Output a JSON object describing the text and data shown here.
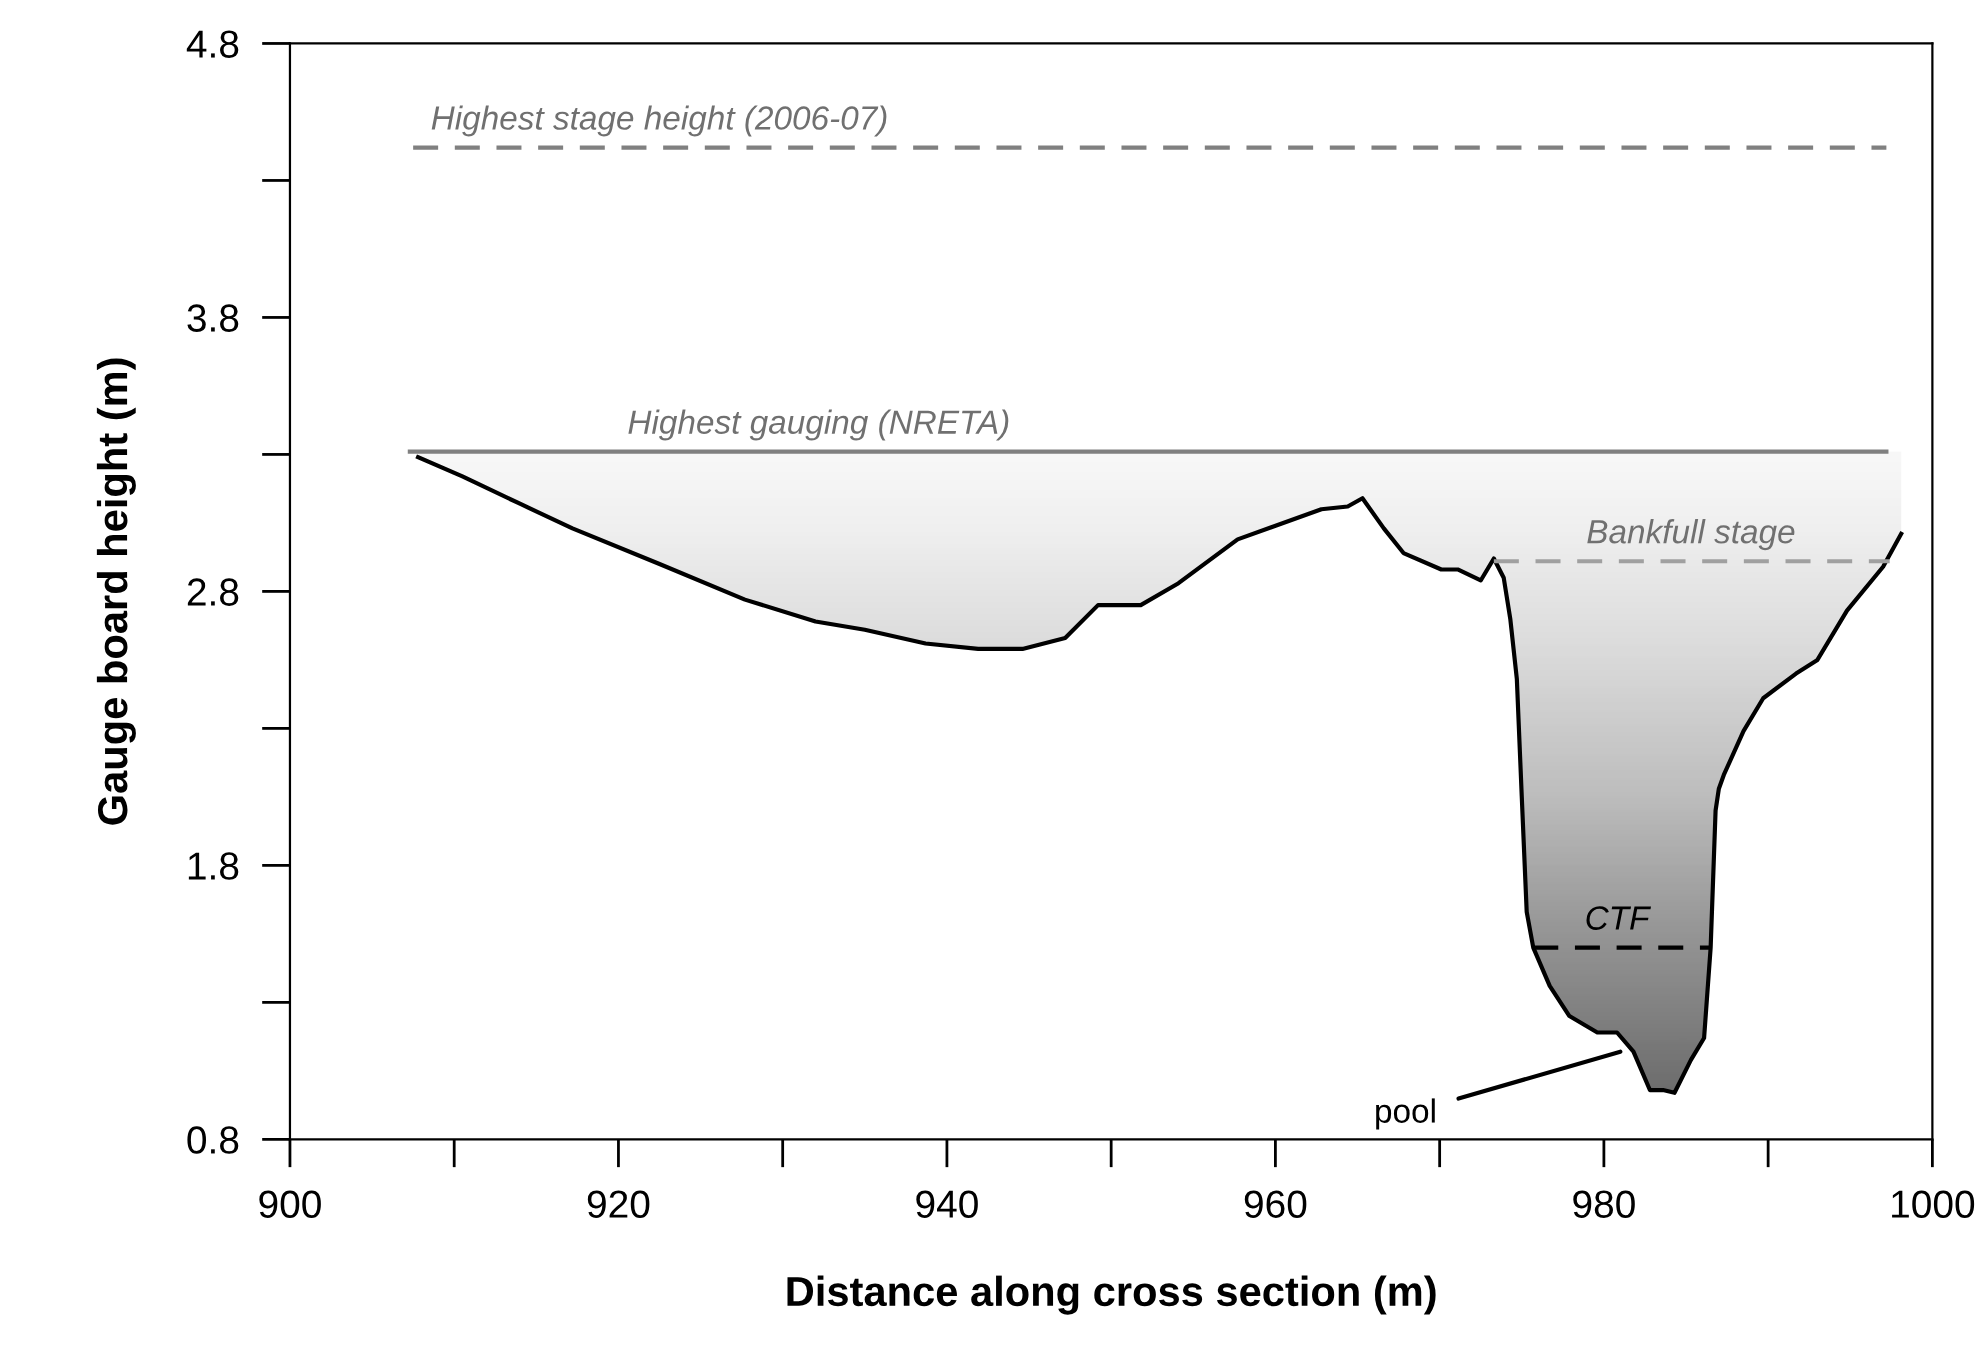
{
  "chart_data": {
    "type": "line",
    "xlabel": "Distance along cross section (m)",
    "ylabel": "Gauge board height (m)",
    "xlim": [
      900,
      1000
    ],
    "ylim": [
      0.8,
      4.8
    ],
    "xticks": [
      900,
      {
        "value": 910,
        "label": null
      },
      920,
      {
        "value": 930,
        "label": null
      },
      940,
      {
        "value": 950,
        "label": null
      },
      960,
      {
        "value": 970,
        "label": null
      },
      980,
      {
        "value": 990,
        "label": null
      },
      1000
    ],
    "yticks": [
      0.8,
      {
        "value": 1.3,
        "label": null
      },
      1.8,
      {
        "value": 2.3,
        "label": null
      },
      2.8,
      {
        "value": 3.3,
        "label": null
      },
      3.8,
      {
        "value": 4.3,
        "label": null
      },
      4.8
    ],
    "grid": false,
    "legend": false,
    "marker": "none",
    "series": [
      {
        "color": "#000000",
        "line_style": "solid",
        "x": [
          907.8,
          910.5,
          914.0,
          917.2,
          922.5,
          927.7,
          932.0,
          935.0,
          938.7,
          941.9,
          944.6,
          947.2,
          949.2,
          951.8,
          954.1,
          957.7,
          962.8,
          964.4,
          965.3,
          966.6,
          967.8,
          970.1,
          971.1,
          972.5,
          973.3,
          973.9,
          974.3,
          974.7,
          975.0,
          975.3,
          975.7,
          976.7,
          977.9,
          979.6,
          980.8,
          981.8,
          982.8,
          983.6,
          984.3,
          985.3,
          986.1,
          986.5,
          986.8,
          987.0,
          987.3,
          988.5,
          989.7,
          991.7,
          993.0,
          994.8,
          997.0,
          998.1
        ],
        "values": [
          3.29,
          3.22,
          3.12,
          3.03,
          2.9,
          2.77,
          2.69,
          2.66,
          2.61,
          2.59,
          2.59,
          2.63,
          2.75,
          2.75,
          2.83,
          2.99,
          3.1,
          3.11,
          3.14,
          3.03,
          2.94,
          2.88,
          2.88,
          2.84,
          2.92,
          2.85,
          2.7,
          2.48,
          2.05,
          1.63,
          1.5,
          1.36,
          1.25,
          1.19,
          1.19,
          1.12,
          0.98,
          0.98,
          0.97,
          1.09,
          1.17,
          1.5,
          2.0,
          2.08,
          2.13,
          2.29,
          2.41,
          2.5,
          2.55,
          2.73,
          2.89,
          3.01
        ]
      },
      {
        "color": "#808080",
        "line_style": "dashed",
        "x": [
          907.5,
          997.2
        ],
        "values": [
          4.42,
          4.42
        ]
      },
      {
        "color": "#808080",
        "line_style": "solid",
        "x": [
          907.3,
          997.2
        ],
        "values": [
          3.31,
          3.31
        ]
      },
      {
        "color": "#a0a0a0",
        "line_style": "dashed",
        "x": [
          973.3,
          997.4
        ],
        "values": [
          2.91,
          2.91
        ]
      },
      {
        "color": "#000000",
        "line_style": "dashed",
        "x": [
          975.7,
          986.5
        ],
        "values": [
          1.5,
          1.5
        ]
      }
    ],
    "annotations": [
      {
        "text": "Highest stage height (2006-07)",
        "x": 922.5,
        "y": 4.42
      },
      {
        "text": "Highest gauging (NRETA)",
        "x": 932.2,
        "y": 3.31
      },
      {
        "text": "Bankfull stage",
        "x": 985.3,
        "y": 2.91
      },
      {
        "text": "CTF",
        "x": 980.8,
        "y": 1.5
      },
      {
        "text": "pool",
        "x": 981.0,
        "y": 1.12
      }
    ]
  }
}
